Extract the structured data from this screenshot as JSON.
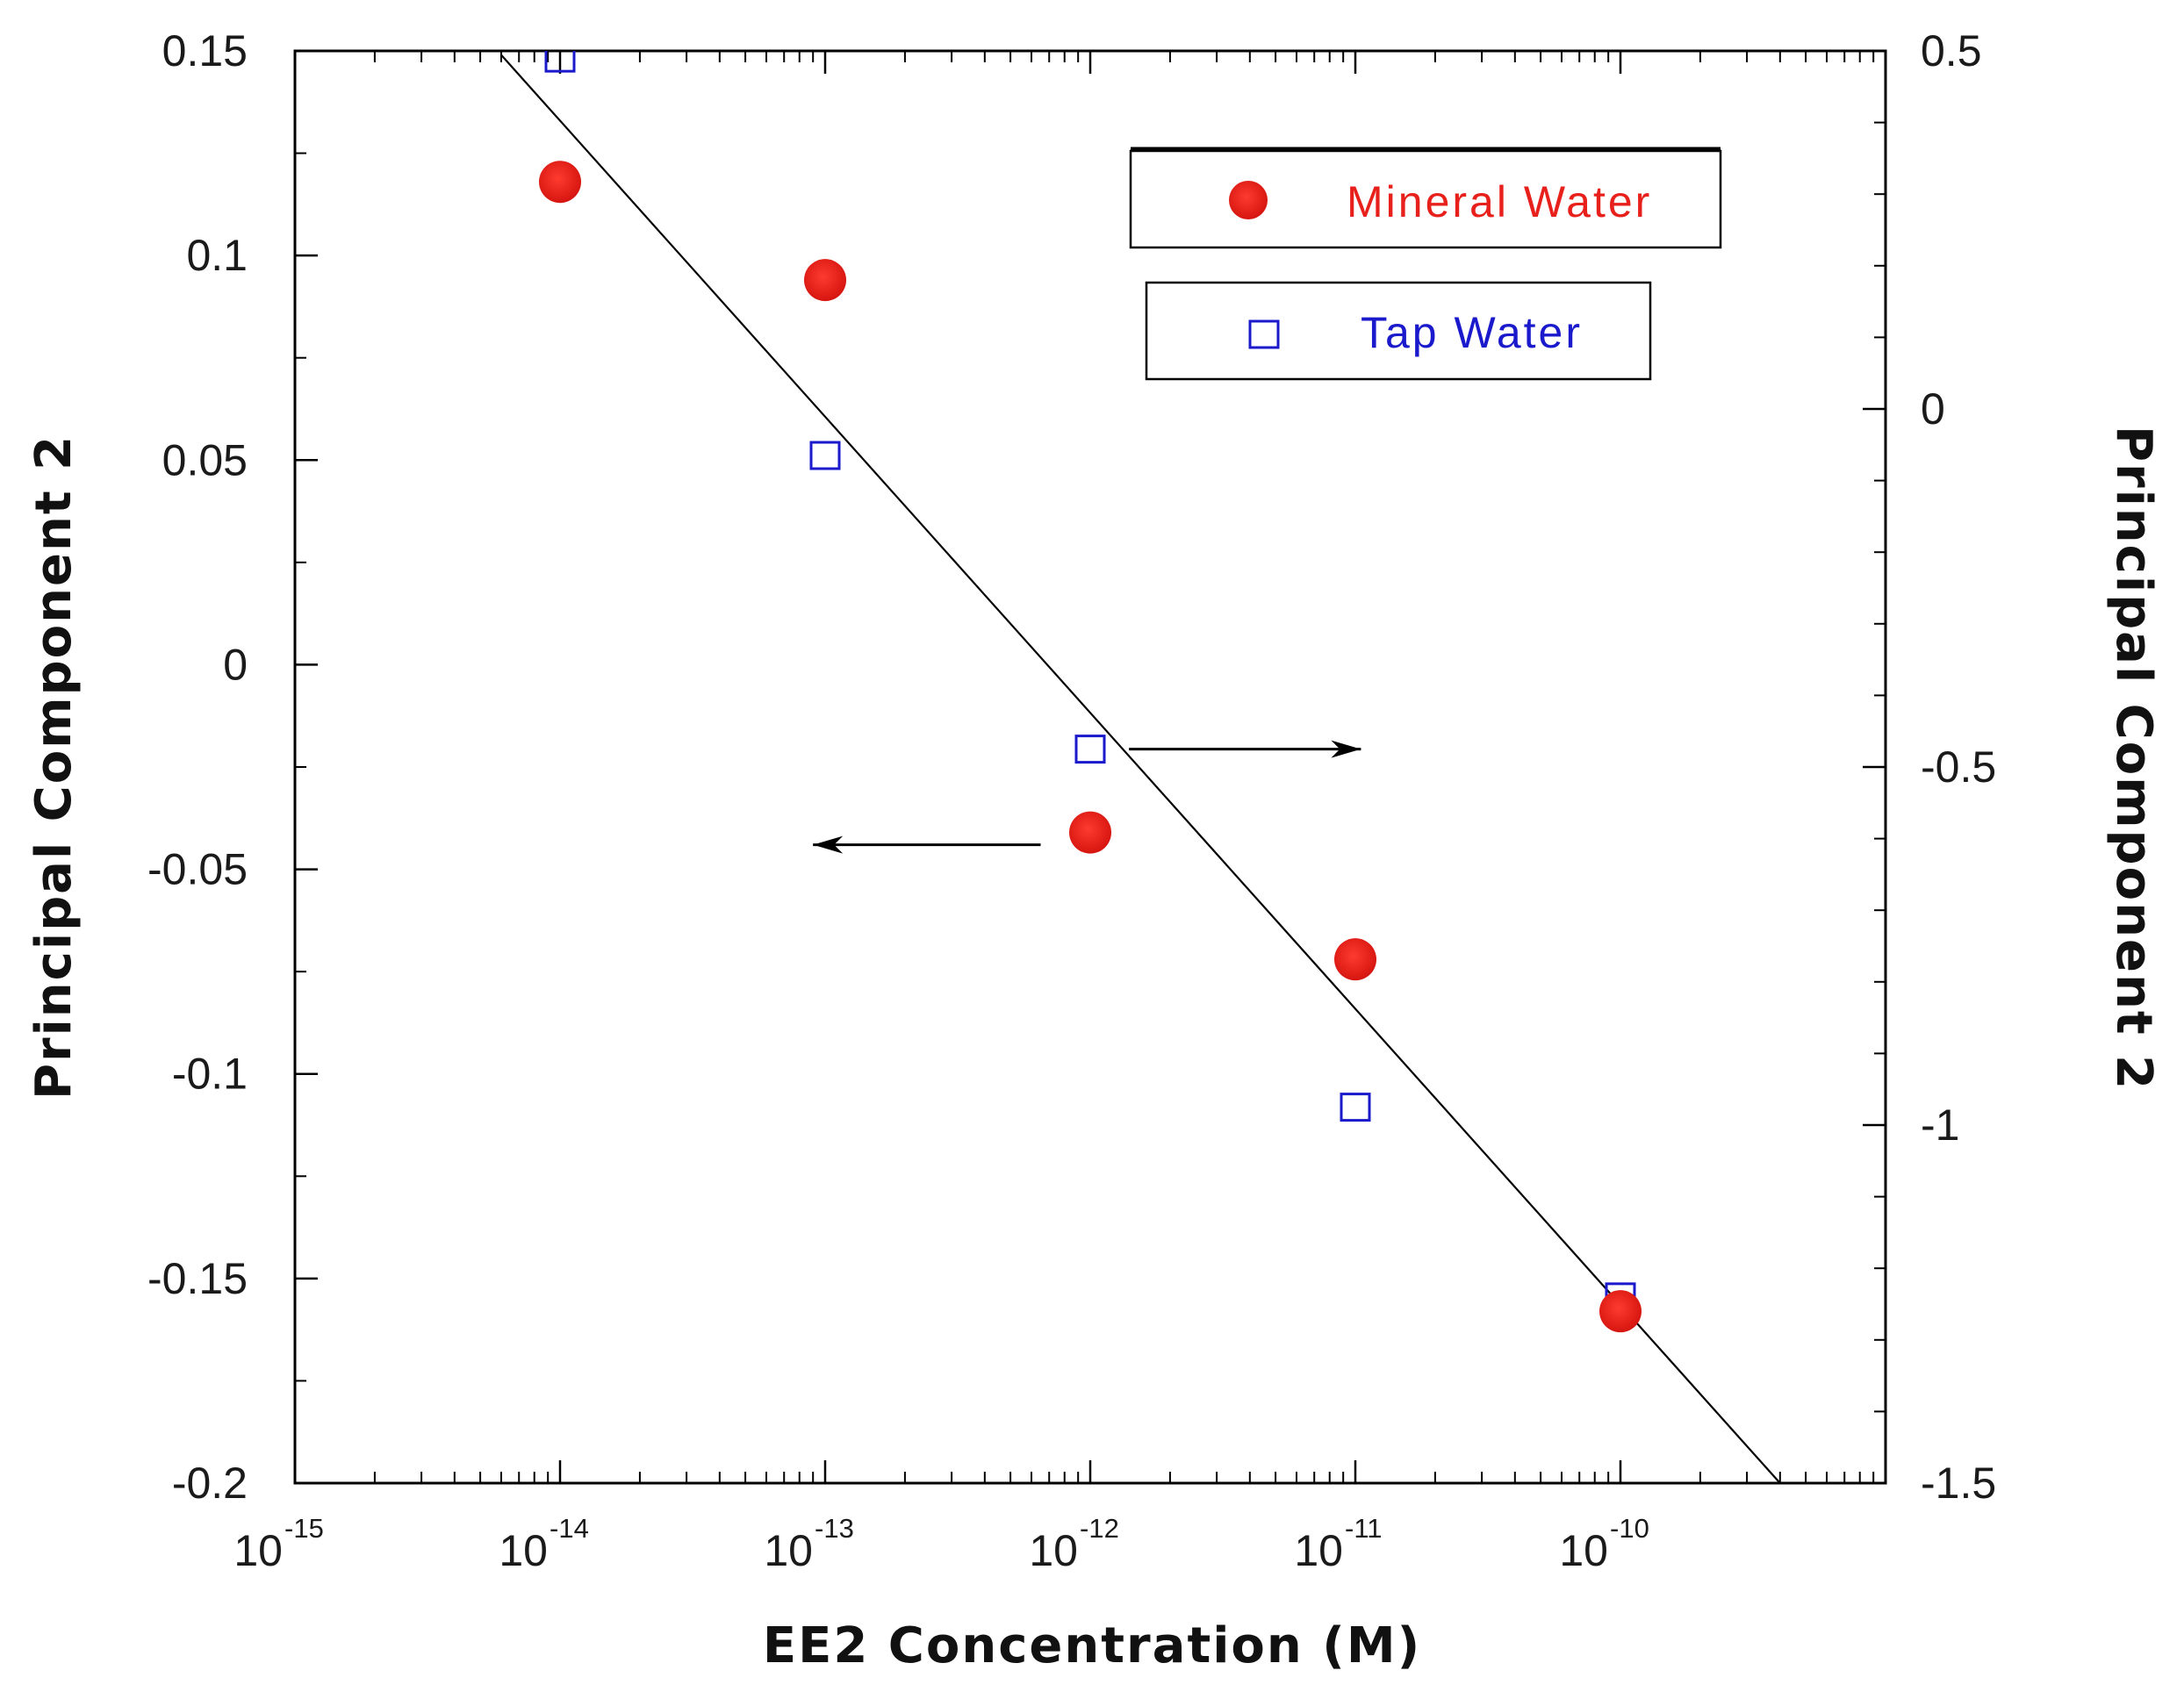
{
  "chart_data": {
    "type": "scatter",
    "title": "",
    "xlabel": "EE2 Concentration (M)",
    "ylabel_left": "Principal Component 2",
    "ylabel_right": "Principal Component 2",
    "xscale": "log",
    "xlim": [
      1e-15,
      1e-09
    ],
    "ylim_left": [
      -0.2,
      0.15
    ],
    "ylim_right": [
      -1.5,
      0.5
    ],
    "x_ticks": [
      {
        "base": "10",
        "exp": "-15"
      },
      {
        "base": "10",
        "exp": "-14"
      },
      {
        "base": "10",
        "exp": "-13"
      },
      {
        "base": "10",
        "exp": "-12"
      },
      {
        "base": "10",
        "exp": "-11"
      },
      {
        "base": "10",
        "exp": "-10"
      }
    ],
    "y_left_ticks": [
      "0.15",
      "0.1",
      "0.05",
      "0",
      "-0.05",
      "-0.1",
      "-0.15",
      "-0.2"
    ],
    "y_left_tick_values": [
      0.15,
      0.1,
      0.05,
      0,
      -0.05,
      -0.1,
      -0.15,
      -0.2
    ],
    "y_right_ticks": [
      "0.5",
      "0",
      "-0.5",
      "-1",
      "-1.5"
    ],
    "y_right_tick_values": [
      0.5,
      0,
      -0.5,
      -1,
      -1.5
    ],
    "series": [
      {
        "name": "Mineral Water",
        "axis": "left",
        "marker": "filled-circle",
        "color": "#e8201c",
        "x": [
          1e-14,
          1e-13,
          1e-12,
          1e-11,
          1e-10
        ],
        "y": [
          0.118,
          0.094,
          -0.041,
          -0.072,
          -0.158
        ]
      },
      {
        "name": "Tap Water",
        "axis": "right",
        "marker": "open-square",
        "color": "#1a1acc",
        "x": [
          1e-14,
          1e-13,
          1e-12,
          1e-11,
          1e-10
        ],
        "y": [
          0.49,
          -0.065,
          -0.475,
          -0.975,
          -1.24
        ]
      }
    ],
    "fit_line": {
      "axis": "left",
      "color": "#000000",
      "x": [
        6e-15,
        4e-10
      ],
      "y": [
        0.149,
        -0.2
      ]
    },
    "annotations": [
      {
        "type": "arrow",
        "direction": "right",
        "points_to": "right axis",
        "series": "Tap Water",
        "y_axis": "right",
        "y": -0.475,
        "x_from": 1.4e-12,
        "x_to": 1.05e-11
      },
      {
        "type": "arrow",
        "direction": "left",
        "points_to": "left axis",
        "series": "Mineral Water",
        "y_axis": "left",
        "y": -0.044,
        "x_from": 6.5e-13,
        "x_to": 9e-14
      }
    ],
    "legend": [
      {
        "label": "Mineral Water",
        "color": "#e8201c",
        "marker": "filled-circle",
        "placement": "top-right"
      },
      {
        "label": "Tap Water",
        "color": "#1a1acc",
        "marker": "open-square",
        "placement": "top-right"
      }
    ],
    "grid": false
  }
}
